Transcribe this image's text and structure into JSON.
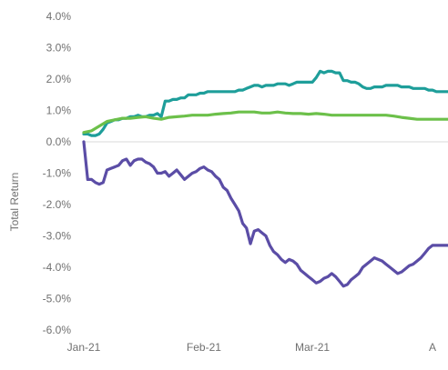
{
  "chart_data": {
    "type": "line",
    "title": "",
    "ylabel": "Total Return",
    "xlabel": "",
    "ylim": [
      -6.0,
      4.0
    ],
    "yticks": [
      "4.0%",
      "3.0%",
      "2.0%",
      "1.0%",
      "0.0%",
      "-1.0%",
      "-2.0%",
      "-3.0%",
      "-4.0%",
      "-5.0%",
      "-6.0%"
    ],
    "ytick_values": [
      4,
      3,
      2,
      1,
      0,
      -1,
      -2,
      -3,
      -4,
      -5,
      -6
    ],
    "xticks": [
      "Jan-21",
      "Feb-21",
      "Mar-21",
      "A"
    ],
    "xtick_days": [
      0,
      31,
      59,
      90
    ],
    "xlim": [
      0,
      94
    ],
    "grid": false,
    "legend": "none",
    "series": [
      {
        "color": "#1E9E9A",
        "x": [
          0,
          1,
          2,
          3,
          4,
          5,
          6,
          7,
          8,
          9,
          10,
          11,
          12,
          13,
          14,
          15,
          16,
          17,
          18,
          19,
          20,
          21,
          22,
          23,
          24,
          25,
          26,
          27,
          28,
          29,
          30,
          31,
          32,
          33,
          34,
          35,
          36,
          37,
          38,
          39,
          40,
          41,
          42,
          43,
          44,
          45,
          46,
          47,
          48,
          49,
          50,
          51,
          52,
          53,
          54,
          55,
          56,
          57,
          58,
          59,
          60,
          61,
          62,
          63,
          64,
          65,
          66,
          67,
          68,
          69,
          70,
          71,
          72,
          73,
          74,
          75,
          76,
          77,
          78,
          79,
          80,
          81,
          82,
          83,
          84,
          85,
          86,
          87,
          88,
          89,
          90,
          91,
          92,
          93,
          94
        ],
        "values": [
          0.25,
          0.25,
          0.2,
          0.2,
          0.25,
          0.4,
          0.6,
          0.65,
          0.7,
          0.7,
          0.75,
          0.75,
          0.8,
          0.8,
          0.85,
          0.8,
          0.8,
          0.85,
          0.85,
          0.9,
          0.8,
          1.3,
          1.3,
          1.35,
          1.35,
          1.4,
          1.4,
          1.5,
          1.5,
          1.5,
          1.55,
          1.55,
          1.6,
          1.6,
          1.6,
          1.6,
          1.6,
          1.6,
          1.6,
          1.6,
          1.65,
          1.65,
          1.7,
          1.75,
          1.8,
          1.8,
          1.75,
          1.8,
          1.8,
          1.8,
          1.85,
          1.85,
          1.85,
          1.8,
          1.85,
          1.9,
          1.9,
          1.9,
          1.9,
          1.9,
          2.05,
          2.25,
          2.2,
          2.25,
          2.25,
          2.2,
          2.2,
          1.95,
          1.95,
          1.9,
          1.9,
          1.85,
          1.75,
          1.7,
          1.7,
          1.75,
          1.75,
          1.75,
          1.8,
          1.8,
          1.8,
          1.8,
          1.75,
          1.75,
          1.75,
          1.7,
          1.7,
          1.7,
          1.7,
          1.65,
          1.65,
          1.6,
          1.6,
          1.6,
          1.6
        ]
      },
      {
        "color": "#6CC04A",
        "x": [
          0,
          2,
          4,
          6,
          8,
          10,
          12,
          14,
          16,
          18,
          20,
          22,
          24,
          26,
          28,
          30,
          32,
          34,
          36,
          38,
          40,
          42,
          44,
          46,
          48,
          50,
          52,
          54,
          56,
          58,
          60,
          62,
          64,
          66,
          68,
          70,
          72,
          74,
          76,
          78,
          80,
          82,
          84,
          86,
          88,
          90,
          92,
          94
        ],
        "values": [
          0.3,
          0.35,
          0.5,
          0.65,
          0.7,
          0.75,
          0.75,
          0.78,
          0.8,
          0.75,
          0.72,
          0.78,
          0.8,
          0.82,
          0.85,
          0.85,
          0.85,
          0.88,
          0.9,
          0.92,
          0.95,
          0.95,
          0.95,
          0.92,
          0.92,
          0.95,
          0.92,
          0.9,
          0.9,
          0.88,
          0.9,
          0.88,
          0.85,
          0.85,
          0.85,
          0.85,
          0.85,
          0.85,
          0.85,
          0.85,
          0.82,
          0.78,
          0.75,
          0.72,
          0.72,
          0.72,
          0.72,
          0.72
        ]
      },
      {
        "color": "#5B4DA6",
        "x": [
          0,
          1,
          2,
          3,
          4,
          5,
          6,
          7,
          8,
          9,
          10,
          11,
          12,
          13,
          14,
          15,
          16,
          17,
          18,
          19,
          20,
          21,
          22,
          23,
          24,
          25,
          26,
          27,
          28,
          29,
          30,
          31,
          32,
          33,
          34,
          35,
          36,
          37,
          38,
          39,
          40,
          41,
          42,
          43,
          44,
          45,
          46,
          47,
          48,
          49,
          50,
          51,
          52,
          53,
          54,
          55,
          56,
          57,
          58,
          59,
          60,
          61,
          62,
          63,
          64,
          65,
          66,
          67,
          68,
          69,
          70,
          71,
          72,
          73,
          74,
          75,
          76,
          77,
          78,
          79,
          80,
          81,
          82,
          83,
          84,
          85,
          86,
          87,
          88,
          89,
          90,
          91,
          92,
          93,
          94
        ],
        "values": [
          0,
          -1.2,
          -1.2,
          -1.3,
          -1.35,
          -1.3,
          -0.9,
          -0.85,
          -0.8,
          -0.75,
          -0.6,
          -0.55,
          -0.75,
          -0.6,
          -0.55,
          -0.55,
          -0.65,
          -0.7,
          -0.8,
          -1.0,
          -1.0,
          -0.95,
          -1.1,
          -1.0,
          -0.9,
          -1.05,
          -1.2,
          -1.1,
          -1.0,
          -0.95,
          -0.85,
          -0.8,
          -0.9,
          -0.95,
          -1.1,
          -1.2,
          -1.45,
          -1.55,
          -1.8,
          -2.0,
          -2.2,
          -2.6,
          -2.75,
          -3.25,
          -2.85,
          -2.8,
          -2.9,
          -3.0,
          -3.3,
          -3.5,
          -3.6,
          -3.75,
          -3.85,
          -3.75,
          -3.8,
          -3.9,
          -4.1,
          -4.2,
          -4.3,
          -4.4,
          -4.5,
          -4.45,
          -4.35,
          -4.3,
          -4.2,
          -4.3,
          -4.45,
          -4.6,
          -4.55,
          -4.4,
          -4.3,
          -4.2,
          -4.0,
          -3.9,
          -3.8,
          -3.7,
          -3.75,
          -3.8,
          -3.9,
          -4.0,
          -4.1,
          -4.2,
          -4.15,
          -4.05,
          -3.95,
          -3.9,
          -3.8,
          -3.7,
          -3.55,
          -3.4,
          -3.3,
          -3.3,
          -3.3,
          -3.3,
          -3.3
        ]
      }
    ]
  }
}
